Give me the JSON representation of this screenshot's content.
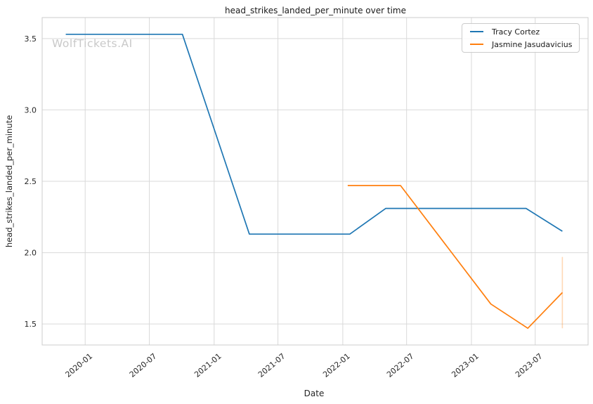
{
  "watermark": "WolfTickets.AI",
  "chart_data": {
    "type": "line",
    "title": "head_strikes_landed_per_minute over time",
    "xlabel": "Date",
    "ylabel": "head_strikes_landed_per_minute",
    "grid": true,
    "legend_position": "upper right",
    "background_color": "#ffffff",
    "grid_color": "#d9d9d9",
    "spine_color": "#cccccc",
    "text_color": "#262626",
    "x_range": [
      "2019-09-01",
      "2023-11-28"
    ],
    "y_range": [
      1.353,
      3.647
    ],
    "x_ticks": [
      {
        "date": "2020-01-01",
        "label": "2020-01"
      },
      {
        "date": "2020-07-01",
        "label": "2020-07"
      },
      {
        "date": "2021-01-01",
        "label": "2021-01"
      },
      {
        "date": "2021-07-01",
        "label": "2021-07"
      },
      {
        "date": "2022-01-01",
        "label": "2022-01"
      },
      {
        "date": "2022-07-01",
        "label": "2022-07"
      },
      {
        "date": "2023-01-01",
        "label": "2023-01"
      },
      {
        "date": "2023-07-01",
        "label": "2023-07"
      }
    ],
    "y_ticks": [
      {
        "value": 1.5,
        "label": "1.5"
      },
      {
        "value": 2.0,
        "label": "2.0"
      },
      {
        "value": 2.5,
        "label": "2.5"
      },
      {
        "value": 3.0,
        "label": "3.0"
      },
      {
        "value": 3.5,
        "label": "3.5"
      }
    ],
    "series": [
      {
        "name": "Tracy Cortez",
        "color": "#1f77b4",
        "points": [
          [
            "2019-11-07",
            3.53
          ],
          [
            "2020-10-03",
            3.53
          ],
          [
            "2021-04-11",
            2.13
          ],
          [
            "2022-01-21",
            2.13
          ],
          [
            "2022-05-03",
            2.31
          ],
          [
            "2023-06-05",
            2.31
          ],
          [
            "2023-09-16",
            2.15
          ]
        ]
      },
      {
        "name": "Jasmine Jasudavicius",
        "color": "#ff7f0e",
        "points": [
          [
            "2022-01-15",
            2.47
          ],
          [
            "2022-06-14",
            2.47
          ],
          [
            "2023-02-25",
            1.64
          ],
          [
            "2023-06-10",
            1.47
          ],
          [
            "2023-09-16",
            1.72
          ]
        ]
      }
    ],
    "error_bar": {
      "series": "Jasmine Jasudavicius",
      "date": "2023-09-16",
      "low": 1.47,
      "high": 1.97,
      "color": "#ff7f0e",
      "opacity": 0.3
    }
  }
}
